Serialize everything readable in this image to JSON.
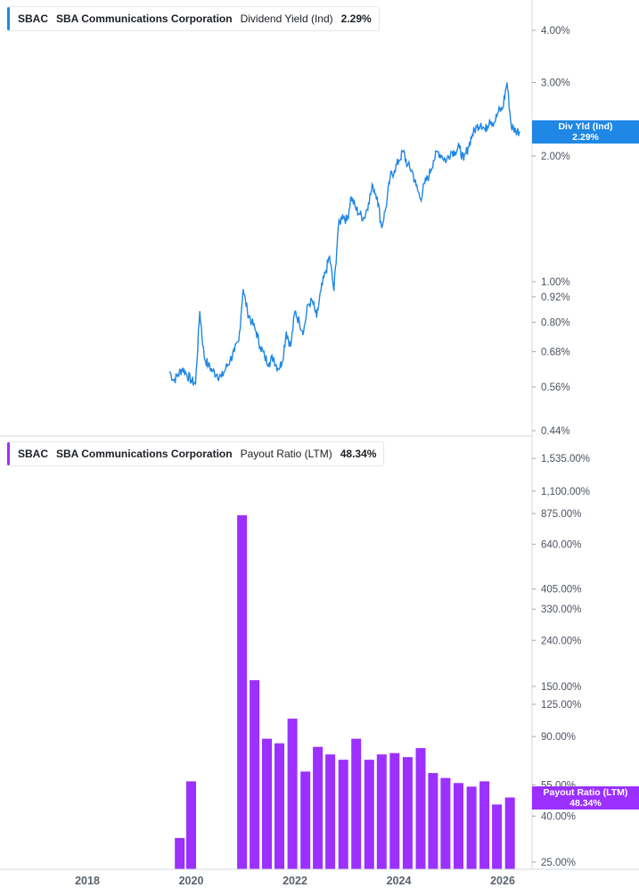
{
  "colors": {
    "yield_line": "#1f87e5",
    "payout_bar": "#9b30ff",
    "axis": "#d5d9de"
  },
  "top_panel": {
    "legend": {
      "ticker": "SBAC",
      "company": "SBA Communications Corporation",
      "metric": "Dividend Yield (Ind)",
      "value": "2.29%"
    },
    "flag": {
      "line1": "Div Yld (Ind)",
      "line2": "2.29%"
    }
  },
  "bottom_panel": {
    "legend": {
      "ticker": "SBAC",
      "company": "SBA Communications Corporation",
      "metric": "Payout Ratio (LTM)",
      "value": "48.34%"
    },
    "flag": {
      "line1": "Payout Ratio (LTM)",
      "line2": "48.34%"
    }
  },
  "chart_data": [
    {
      "type": "line",
      "title": "",
      "series_label": "Dividend Yield (Ind)",
      "scale": "log",
      "ylim": [
        0.44,
        4.6
      ],
      "y_ticks": [
        0.44,
        0.56,
        0.68,
        0.8,
        0.92,
        1.0,
        2.0,
        3.0,
        4.0
      ],
      "y_tick_labels": [
        "0.44%",
        "0.56%",
        "0.68%",
        "0.80%",
        "0.92%",
        "1.00%",
        "2.00%",
        "3.00%",
        "4.00%"
      ],
      "last_value": 2.29,
      "x": [
        "2019-08",
        "2019-09",
        "2019-10",
        "2019-11",
        "2019-12",
        "2020-01",
        "2020-02",
        "2020-03",
        "2020-04",
        "2020-05",
        "2020-06",
        "2020-07",
        "2020-08",
        "2020-09",
        "2020-10",
        "2020-11",
        "2020-12",
        "2021-01",
        "2021-02",
        "2021-03",
        "2021-04",
        "2021-05",
        "2021-06",
        "2021-07",
        "2021-08",
        "2021-09",
        "2021-10",
        "2021-11",
        "2021-12",
        "2022-01",
        "2022-02",
        "2022-03",
        "2022-04",
        "2022-05",
        "2022-06",
        "2022-07",
        "2022-08",
        "2022-09",
        "2022-10",
        "2022-11",
        "2022-12",
        "2023-01",
        "2023-02",
        "2023-03",
        "2023-04",
        "2023-05",
        "2023-06",
        "2023-07",
        "2023-08",
        "2023-09",
        "2023-10",
        "2023-11",
        "2023-12",
        "2024-01",
        "2024-02",
        "2024-03",
        "2024-04",
        "2024-05",
        "2024-06",
        "2024-07",
        "2024-08",
        "2024-09",
        "2024-10",
        "2024-11",
        "2024-12",
        "2025-01",
        "2025-02",
        "2025-03",
        "2025-04",
        "2025-05",
        "2025-06",
        "2025-07",
        "2025-08",
        "2025-09",
        "2025-10",
        "2025-11",
        "2025-12",
        "2026-01",
        "2026-02",
        "2026-03",
        "2026-04",
        "2026-05"
      ],
      "y": [
        0.61,
        0.58,
        0.6,
        0.62,
        0.6,
        0.58,
        0.57,
        0.85,
        0.66,
        0.63,
        0.61,
        0.6,
        0.59,
        0.62,
        0.65,
        0.68,
        0.72,
        0.96,
        0.85,
        0.8,
        0.76,
        0.7,
        0.66,
        0.64,
        0.66,
        0.62,
        0.64,
        0.76,
        0.7,
        0.85,
        0.8,
        0.76,
        0.88,
        0.9,
        0.82,
        0.95,
        1.05,
        1.15,
        0.95,
        1.35,
        1.45,
        1.4,
        1.6,
        1.5,
        1.45,
        1.42,
        1.55,
        1.7,
        1.6,
        1.35,
        1.5,
        1.78,
        1.85,
        1.95,
        2.05,
        1.9,
        1.85,
        1.7,
        1.58,
        1.72,
        1.8,
        1.95,
        2.05,
        2.0,
        1.95,
        2.05,
        2.05,
        2.1,
        1.95,
        2.1,
        2.25,
        2.35,
        2.4,
        2.3,
        2.45,
        2.4,
        2.55,
        2.6,
        3.0,
        2.35,
        2.3,
        2.29
      ]
    },
    {
      "type": "bar",
      "title": "",
      "series_label": "Payout Ratio (LTM)",
      "scale": "log",
      "ylim": [
        24,
        1700
      ],
      "y_ticks": [
        25,
        40,
        55,
        90,
        125,
        150,
        240,
        330,
        405,
        640,
        875,
        1100,
        1535
      ],
      "y_tick_labels": [
        "25.00%",
        "40.00%",
        "55.00%",
        "90.00%",
        "125.00%",
        "150.00%",
        "240.00%",
        "330.00%",
        "405.00%",
        "640.00%",
        "875.00%",
        "1,100.00%",
        "1,535.00%"
      ],
      "last_value": 48.34,
      "categories": [
        "2019-Q3",
        "2019-Q4",
        "2020-Q1",
        "2020-Q2",
        "2020-Q3",
        "2020-Q4",
        "2021-Q1",
        "2021-Q2",
        "2021-Q3",
        "2021-Q4",
        "2022-Q1",
        "2022-Q2",
        "2022-Q3",
        "2022-Q4",
        "2023-Q1",
        "2023-Q2",
        "2023-Q3",
        "2023-Q4",
        "2024-Q1",
        "2024-Q2",
        "2024-Q3",
        "2024-Q4",
        "2025-Q1",
        "2025-Q2",
        "2025-Q3",
        "2025-Q4",
        "2026-Q1"
      ],
      "x_pos": [
        2019.78,
        2020.0,
        null,
        null,
        null,
        2020.98,
        2021.22,
        2021.46,
        2021.7,
        2021.95,
        2022.2,
        2022.44,
        2022.68,
        2022.93,
        2023.18,
        2023.43,
        2023.67,
        2023.92,
        2024.17,
        2024.42,
        2024.66,
        2024.9,
        2025.15,
        2025.4,
        2025.65,
        2025.89,
        2026.14
      ],
      "values": [
        32,
        57,
        null,
        null,
        null,
        860,
        160,
        88,
        84,
        108,
        63,
        81,
        75,
        71,
        88,
        71,
        75,
        76,
        73,
        80,
        62,
        59,
        56,
        54,
        57,
        45,
        48.34
      ]
    }
  ],
  "x_axis": {
    "ticks": [
      2018,
      2020,
      2022,
      2024,
      2026
    ],
    "labels": [
      "2018",
      "2020",
      "2022",
      "2024",
      "2026"
    ]
  }
}
